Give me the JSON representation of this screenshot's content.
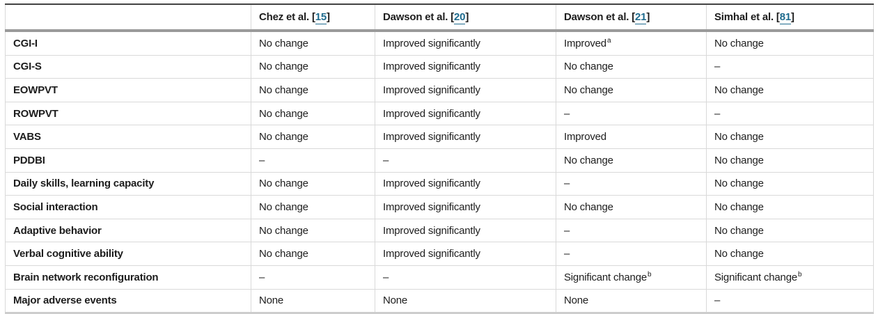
{
  "colors": {
    "text": "#1d1d1d",
    "citation_link": "#1e6b8e",
    "top_rule": "#434343",
    "header_rule": "#9a9a9a",
    "bottom_rule": "#cdcdcd",
    "grid_line": "#d9d9d9",
    "background": "#ffffff"
  },
  "table": {
    "header": {
      "row_label_column": "",
      "columns": [
        {
          "prefix": "Chez et al. [",
          "ref": "15",
          "suffix": "]"
        },
        {
          "prefix": "Dawson et al. [",
          "ref": "20",
          "suffix": "]"
        },
        {
          "prefix": "Dawson et al. [",
          "ref": "21",
          "suffix": "]"
        },
        {
          "prefix": "Simhal et al. [",
          "ref": "81",
          "suffix": "]"
        }
      ]
    },
    "rows": [
      {
        "label": "CGI-I",
        "cells": [
          {
            "text": "No change"
          },
          {
            "text": "Improved significantly"
          },
          {
            "text": "Improved",
            "sup": "a"
          },
          {
            "text": "No change"
          }
        ]
      },
      {
        "label": "CGI-S",
        "cells": [
          {
            "text": "No change"
          },
          {
            "text": "Improved significantly"
          },
          {
            "text": "No change"
          },
          {
            "text": "–"
          }
        ]
      },
      {
        "label": "EOWPVT",
        "cells": [
          {
            "text": "No change"
          },
          {
            "text": "Improved significantly"
          },
          {
            "text": "No change"
          },
          {
            "text": "No change"
          }
        ]
      },
      {
        "label": "ROWPVT",
        "cells": [
          {
            "text": "No change"
          },
          {
            "text": "Improved significantly"
          },
          {
            "text": "–"
          },
          {
            "text": "–"
          }
        ]
      },
      {
        "label": "VABS",
        "cells": [
          {
            "text": "No change"
          },
          {
            "text": "Improved significantly"
          },
          {
            "text": "Improved"
          },
          {
            "text": "No change"
          }
        ]
      },
      {
        "label": "PDDBI",
        "cells": [
          {
            "text": "–"
          },
          {
            "text": "–"
          },
          {
            "text": "No change"
          },
          {
            "text": "No change"
          }
        ]
      },
      {
        "label": "Daily skills, learning capacity",
        "cells": [
          {
            "text": "No change"
          },
          {
            "text": "Improved significantly"
          },
          {
            "text": "–"
          },
          {
            "text": "No change"
          }
        ]
      },
      {
        "label": "Social interaction",
        "cells": [
          {
            "text": "No change"
          },
          {
            "text": "Improved significantly"
          },
          {
            "text": "No change"
          },
          {
            "text": "No change"
          }
        ]
      },
      {
        "label": "Adaptive behavior",
        "cells": [
          {
            "text": "No change"
          },
          {
            "text": "Improved significantly"
          },
          {
            "text": "–"
          },
          {
            "text": "No change"
          }
        ]
      },
      {
        "label": "Verbal cognitive ability",
        "cells": [
          {
            "text": "No change"
          },
          {
            "text": "Improved significantly"
          },
          {
            "text": "–"
          },
          {
            "text": "No change"
          }
        ]
      },
      {
        "label": "Brain network reconfiguration",
        "cells": [
          {
            "text": "–"
          },
          {
            "text": "–"
          },
          {
            "text": "Significant change",
            "sup": "b"
          },
          {
            "text": "Significant change",
            "sup": "b"
          }
        ]
      },
      {
        "label": "Major adverse events",
        "cells": [
          {
            "text": "None"
          },
          {
            "text": "None"
          },
          {
            "text": "None"
          },
          {
            "text": "–"
          }
        ]
      }
    ]
  }
}
